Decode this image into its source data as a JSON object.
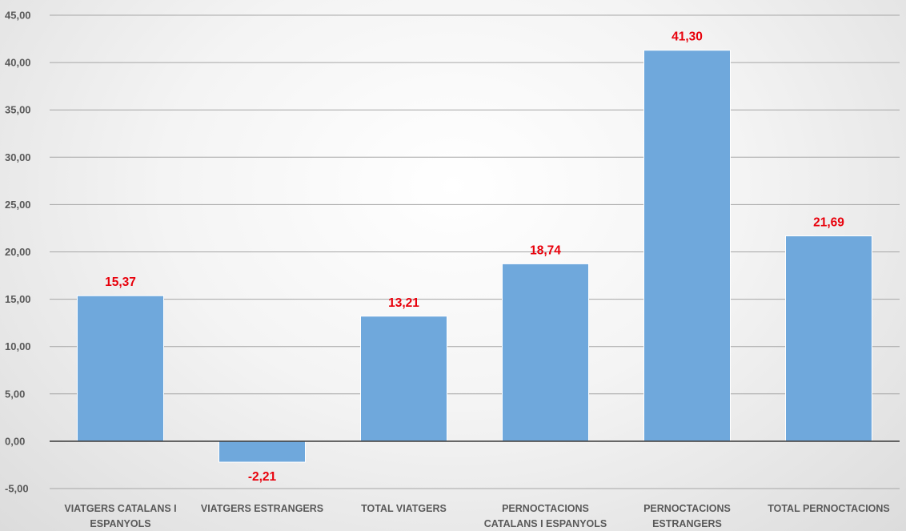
{
  "chart_data": {
    "type": "bar",
    "title": "",
    "xlabel": "",
    "ylabel": "",
    "categories": [
      [
        "VIATGERS CATALANS I",
        "ESPANYOLS"
      ],
      [
        "VIATGERS ESTRANGERS"
      ],
      [
        "TOTAL VIATGERS"
      ],
      [
        "PERNOCTACIONS",
        "CATALANS I ESPANYOLS"
      ],
      [
        "PERNOCTACIONS",
        "ESTRANGERS"
      ],
      [
        "TOTAL PERNOCTACIONS"
      ]
    ],
    "values": [
      15.37,
      -2.21,
      13.21,
      18.74,
      41.3,
      21.69
    ],
    "value_labels": [
      "15,37",
      "-2,21",
      "13,21",
      "18,74",
      "41,30",
      "21,69"
    ],
    "ylim": [
      -5,
      45
    ],
    "yticks": [
      45,
      40,
      35,
      30,
      25,
      20,
      15,
      10,
      5,
      0,
      -5
    ],
    "ytick_labels": [
      "45,00",
      "40,00",
      "35,00",
      "30,00",
      "25,00",
      "20,00",
      "15,00",
      "10,00",
      "5,00",
      "0,00",
      "-5,00"
    ],
    "grid": true,
    "legend": "none",
    "colors": {
      "bar": "#6fa8dc",
      "bar_edge": "#ffffff",
      "data_label": "#e8000b",
      "grid": "#a6a6a6",
      "zero_line": "#404040",
      "tick_text": "#595959"
    }
  }
}
